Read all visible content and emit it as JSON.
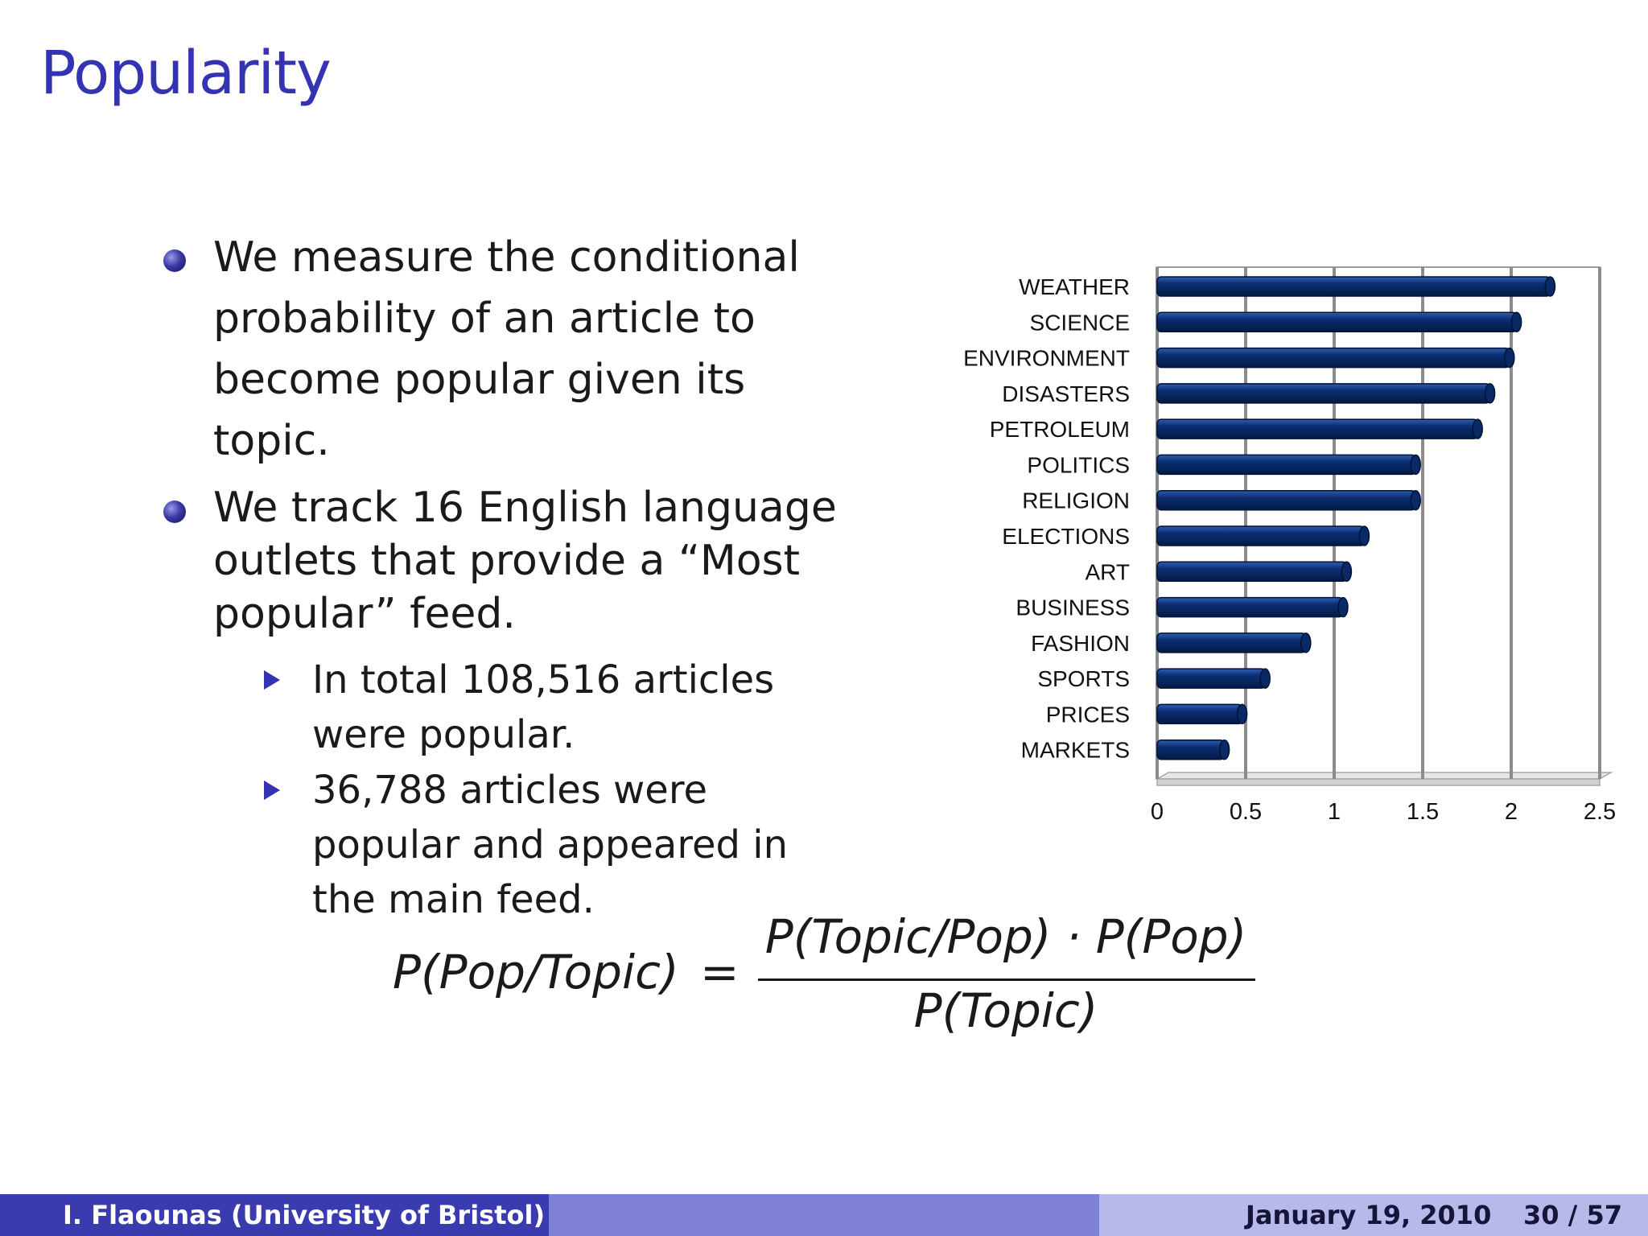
{
  "title": "Popularity",
  "bullets": [
    {
      "lines": [
        "We measure the conditional",
        "probability of an article to",
        "become popular given its",
        "topic."
      ]
    },
    {
      "lines": [
        "We track 16 English language",
        "outlets that provide a “Most",
        "popular” feed."
      ]
    }
  ],
  "subbullets": [
    {
      "lines": [
        "In total 108,516 articles",
        "were popular."
      ]
    },
    {
      "lines": [
        "36,788 articles were",
        "popular and appeared in",
        "the main feed."
      ]
    }
  ],
  "formula": {
    "lhs": "P(Pop/Topic)",
    "eq": "=",
    "numerator": "P(Topic/Pop) · P(Pop)",
    "denominator": "P(Topic)"
  },
  "chart_data": {
    "type": "bar",
    "orientation": "horizontal",
    "categories": [
      "WEATHER",
      "SCIENCE",
      "ENVIRONMENT",
      "DISASTERS",
      "PETROLEUM",
      "POLITICS",
      "RELIGION",
      "ELECTIONS",
      "ART",
      "BUSINESS",
      "FASHION",
      "SPORTS",
      "PRICES",
      "MARKETS"
    ],
    "values": [
      2.22,
      2.03,
      1.99,
      1.88,
      1.81,
      1.46,
      1.46,
      1.17,
      1.07,
      1.05,
      0.84,
      0.61,
      0.48,
      0.38
    ],
    "xticks": [
      "0",
      "0.5",
      "1",
      "1.5",
      "2",
      "2.5"
    ],
    "xlim": [
      0,
      2.5
    ],
    "grid": "vertical",
    "bar_color": "#0b2f73"
  },
  "footer": {
    "author": "I. Flaounas  (University of Bristol)",
    "date": "January 19, 2010",
    "page": "30 / 57"
  }
}
